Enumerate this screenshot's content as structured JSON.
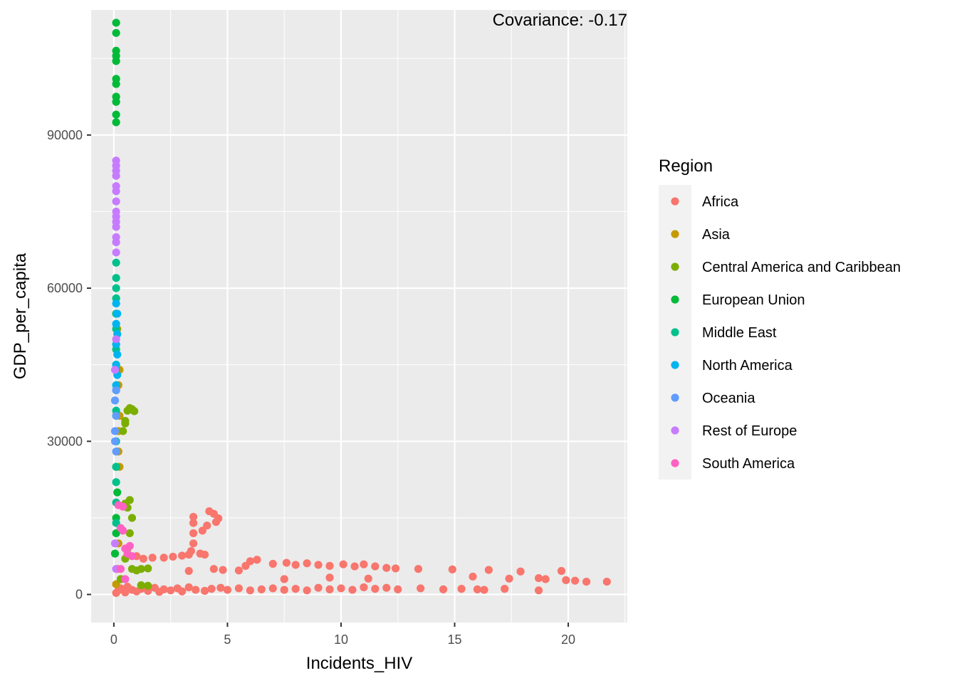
{
  "chart_data": {
    "type": "scatter",
    "xlabel": "Incidents_HIV",
    "ylabel": "GDP_per_capita",
    "annotation": "Covariance: -0.17",
    "xlim": [
      -1.0,
      22.6
    ],
    "ylim": [
      -5500,
      114500
    ],
    "x_ticks": [
      0,
      5,
      10,
      15,
      20
    ],
    "y_ticks": [
      0,
      30000,
      60000,
      90000
    ],
    "x_tick_labels": [
      "0",
      "5",
      "10",
      "15",
      "20"
    ],
    "y_tick_labels": [
      "0",
      "30000",
      "60000",
      "90000"
    ],
    "grid": true,
    "legend_title": "Region",
    "legend_position": "right",
    "series": [
      {
        "name": "Africa",
        "color": "#F8766D",
        "points": [
          [
            0.1,
            300
          ],
          [
            0.2,
            800
          ],
          [
            0.3,
            1200
          ],
          [
            0.5,
            400
          ],
          [
            0.6,
            1500
          ],
          [
            0.8,
            900
          ],
          [
            1.0,
            600
          ],
          [
            1.2,
            1100
          ],
          [
            1.5,
            700
          ],
          [
            1.8,
            1300
          ],
          [
            2.0,
            500
          ],
          [
            2.2,
            1000
          ],
          [
            2.5,
            800
          ],
          [
            2.8,
            1200
          ],
          [
            3.0,
            600
          ],
          [
            3.3,
            1400
          ],
          [
            3.6,
            900
          ],
          [
            4.0,
            700
          ],
          [
            4.3,
            1100
          ],
          [
            4.7,
            1300
          ],
          [
            5.0,
            900
          ],
          [
            5.5,
            1200
          ],
          [
            6.0,
            800
          ],
          [
            6.5,
            1000
          ],
          [
            7.0,
            1200
          ],
          [
            7.5,
            900
          ],
          [
            8.0,
            1100
          ],
          [
            8.5,
            800
          ],
          [
            9.0,
            1300
          ],
          [
            9.5,
            1000
          ],
          [
            10.0,
            1200
          ],
          [
            10.5,
            900
          ],
          [
            11.0,
            1400
          ],
          [
            11.5,
            1100
          ],
          [
            12.0,
            1300
          ],
          [
            12.5,
            1000
          ],
          [
            13.5,
            1200
          ],
          [
            14.5,
            1000
          ],
          [
            15.3,
            1100
          ],
          [
            16.0,
            1000
          ],
          [
            16.3,
            900
          ],
          [
            17.2,
            1100
          ],
          [
            18.7,
            800
          ],
          [
            1.0,
            7500
          ],
          [
            1.3,
            7000
          ],
          [
            1.7,
            7200
          ],
          [
            2.2,
            7200
          ],
          [
            2.6,
            7400
          ],
          [
            3.0,
            7600
          ],
          [
            3.3,
            7800
          ],
          [
            3.8,
            8000
          ],
          [
            4.0,
            7800
          ],
          [
            3.4,
            8500
          ],
          [
            3.5,
            10000
          ],
          [
            3.5,
            12000
          ],
          [
            3.5,
            14000
          ],
          [
            3.5,
            15200
          ],
          [
            3.9,
            12500
          ],
          [
            4.1,
            13500
          ],
          [
            4.2,
            16300
          ],
          [
            4.4,
            15800
          ],
          [
            4.5,
            14200
          ],
          [
            4.6,
            14900
          ],
          [
            4.4,
            5000
          ],
          [
            4.8,
            4800
          ],
          [
            5.5,
            4700
          ],
          [
            5.8,
            5600
          ],
          [
            6.0,
            6500
          ],
          [
            6.3,
            6800
          ],
          [
            7.0,
            6000
          ],
          [
            7.6,
            6200
          ],
          [
            8.0,
            5800
          ],
          [
            8.5,
            6100
          ],
          [
            9.0,
            5800
          ],
          [
            9.5,
            5600
          ],
          [
            10.1,
            5900
          ],
          [
            10.6,
            5500
          ],
          [
            11.0,
            5900
          ],
          [
            11.5,
            5500
          ],
          [
            12.0,
            5200
          ],
          [
            12.4,
            5100
          ],
          [
            13.4,
            5000
          ],
          [
            14.9,
            4900
          ],
          [
            15.8,
            3500
          ],
          [
            16.5,
            4800
          ],
          [
            17.4,
            3100
          ],
          [
            17.9,
            4500
          ],
          [
            18.7,
            3200
          ],
          [
            19.0,
            3000
          ],
          [
            19.7,
            4600
          ],
          [
            19.9,
            2800
          ],
          [
            20.3,
            2700
          ],
          [
            20.8,
            2500
          ],
          [
            21.7,
            2500
          ],
          [
            3.3,
            4600
          ],
          [
            7.5,
            3000
          ],
          [
            9.5,
            3300
          ],
          [
            11.2,
            3100
          ]
        ]
      },
      {
        "name": "Asia",
        "color": "#C49A00",
        "points": [
          [
            0.1,
            2000
          ],
          [
            0.15,
            5000
          ],
          [
            0.2,
            10000
          ],
          [
            0.25,
            25000
          ],
          [
            0.2,
            32000
          ],
          [
            0.25,
            35000
          ],
          [
            0.2,
            41000
          ],
          [
            0.25,
            44000
          ],
          [
            0.15,
            52000
          ],
          [
            0.2,
            28000
          ]
        ]
      },
      {
        "name": "Central America and Caribbean",
        "color": "#7CAE00",
        "points": [
          [
            0.3,
            3000
          ],
          [
            0.5,
            7000
          ],
          [
            0.6,
            9000
          ],
          [
            0.7,
            12000
          ],
          [
            0.8,
            15000
          ],
          [
            0.6,
            17000
          ],
          [
            0.7,
            18500
          ],
          [
            0.5,
            17800
          ],
          [
            0.4,
            32000
          ],
          [
            0.5,
            34000
          ],
          [
            0.6,
            36000
          ],
          [
            0.7,
            36500
          ],
          [
            0.8,
            36300
          ],
          [
            0.9,
            35900
          ],
          [
            0.5,
            33500
          ],
          [
            0.8,
            5000
          ],
          [
            1.0,
            4700
          ],
          [
            1.2,
            5000
          ],
          [
            1.5,
            5100
          ],
          [
            1.2,
            1800
          ],
          [
            1.5,
            1700
          ]
        ]
      },
      {
        "name": "European Union",
        "color": "#00BA38",
        "points": [
          [
            0.1,
            92500
          ],
          [
            0.1,
            94000
          ],
          [
            0.1,
            96500
          ],
          [
            0.1,
            97500
          ],
          [
            0.1,
            100000
          ],
          [
            0.1,
            101000
          ],
          [
            0.1,
            104500
          ],
          [
            0.1,
            105500
          ],
          [
            0.1,
            106500
          ],
          [
            0.1,
            110000
          ],
          [
            0.1,
            112000
          ],
          [
            0.1,
            15000
          ],
          [
            0.1,
            25000
          ],
          [
            0.1,
            35000
          ],
          [
            0.1,
            45000
          ],
          [
            0.1,
            55000
          ],
          [
            0.05,
            8000
          ],
          [
            0.15,
            20000
          ],
          [
            0.1,
            12000
          ]
        ]
      },
      {
        "name": "Middle East",
        "color": "#00C08B",
        "points": [
          [
            0.1,
            65000
          ],
          [
            0.1,
            62000
          ],
          [
            0.1,
            60000
          ],
          [
            0.1,
            58000
          ],
          [
            0.1,
            55000
          ],
          [
            0.1,
            52000
          ],
          [
            0.1,
            48000
          ],
          [
            0.1,
            44000
          ],
          [
            0.1,
            40000
          ],
          [
            0.1,
            36000
          ],
          [
            0.1,
            30000
          ],
          [
            0.1,
            25000
          ],
          [
            0.1,
            22000
          ],
          [
            0.1,
            18000
          ],
          [
            0.1,
            14000
          ]
        ]
      },
      {
        "name": "North America",
        "color": "#00B4EF",
        "points": [
          [
            0.1,
            57000
          ],
          [
            0.15,
            55000
          ],
          [
            0.1,
            53000
          ],
          [
            0.15,
            51000
          ],
          [
            0.1,
            49000
          ],
          [
            0.15,
            47000
          ],
          [
            0.1,
            45000
          ],
          [
            0.15,
            43000
          ],
          [
            0.1,
            41000
          ]
        ]
      },
      {
        "name": "Oceania",
        "color": "#619CFF",
        "points": [
          [
            0.05,
            32000
          ],
          [
            0.1,
            35000
          ],
          [
            0.05,
            38000
          ],
          [
            0.1,
            40000
          ],
          [
            0.05,
            30000
          ],
          [
            0.1,
            28000
          ]
        ]
      },
      {
        "name": "Rest of Europe",
        "color": "#C77CFF",
        "points": [
          [
            0.1,
            85000
          ],
          [
            0.1,
            84000
          ],
          [
            0.1,
            83000
          ],
          [
            0.1,
            82000
          ],
          [
            0.1,
            80000
          ],
          [
            0.1,
            79000
          ],
          [
            0.1,
            77000
          ],
          [
            0.1,
            75000
          ],
          [
            0.1,
            74000
          ],
          [
            0.1,
            73000
          ],
          [
            0.1,
            72000
          ],
          [
            0.1,
            70000
          ],
          [
            0.1,
            69000
          ],
          [
            0.1,
            67000
          ],
          [
            0.1,
            50000
          ],
          [
            0.05,
            44000
          ],
          [
            0.05,
            10000
          ],
          [
            0.1,
            5000
          ]
        ]
      },
      {
        "name": "South America",
        "color": "#FF61C3",
        "points": [
          [
            0.2,
            17500
          ],
          [
            0.4,
            17200
          ],
          [
            0.3,
            13000
          ],
          [
            0.4,
            12500
          ],
          [
            0.5,
            9000
          ],
          [
            0.6,
            8000
          ],
          [
            0.7,
            9500
          ],
          [
            0.8,
            7500
          ],
          [
            0.3,
            5000
          ],
          [
            0.5,
            3000
          ]
        ]
      }
    ]
  }
}
